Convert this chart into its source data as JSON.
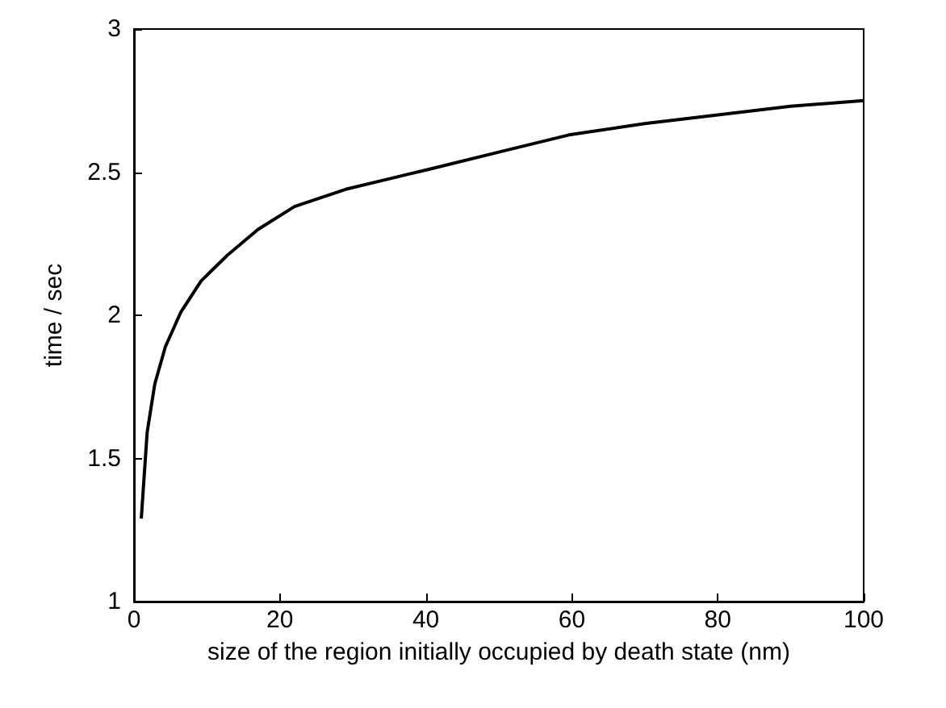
{
  "chart_data": {
    "type": "line",
    "xlabel": "size of the region initially occupied by death state (nm)",
    "ylabel": "time / sec",
    "x": [
      1,
      1.8,
      2.85,
      4.3,
      6.4,
      9.2,
      12.8,
      17,
      22,
      29,
      35.5,
      40.4,
      50,
      59.6,
      70,
      80,
      90,
      100
    ],
    "series": [
      {
        "color": "#000000",
        "values": [
          1.29,
          1.59,
          1.76,
          1.89,
          2.01,
          2.12,
          2.21,
          2.3,
          2.38,
          2.44,
          2.48,
          2.51,
          2.57,
          2.63,
          2.67,
          2.7,
          2.73,
          2.75
        ]
      }
    ],
    "xlim": [
      0,
      100
    ],
    "xticks": [
      0,
      20,
      40,
      60,
      80,
      100
    ],
    "ylim": [
      1,
      3
    ],
    "yticks": [
      1,
      1.5,
      2,
      2.5,
      3
    ],
    "grid": false,
    "marker": "none",
    "line_style": "solid"
  }
}
